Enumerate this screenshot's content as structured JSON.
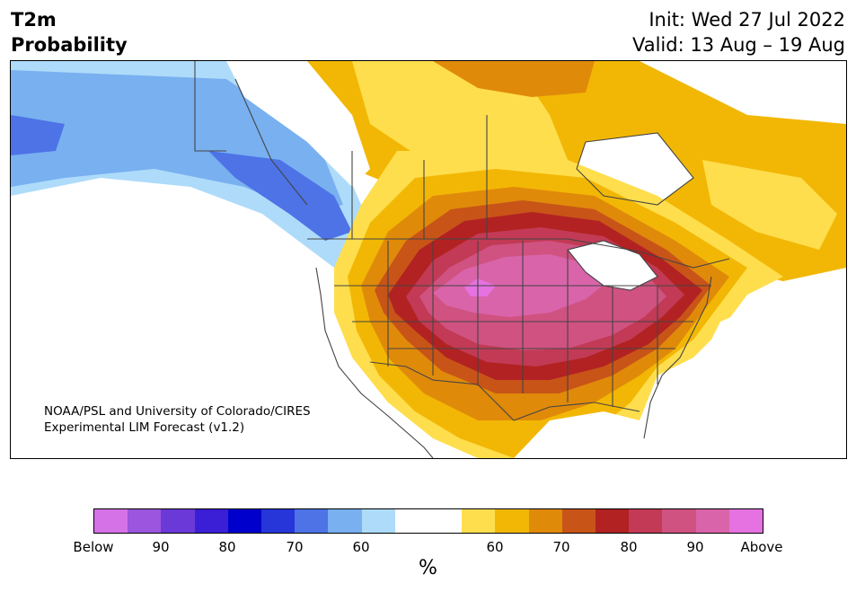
{
  "title": {
    "line1": "T2m",
    "line2": "Probability"
  },
  "init": "Init: Wed 27 Jul 2022",
  "valid": "Valid: 13 Aug – 19 Aug",
  "credit": {
    "line1": "NOAA/PSL and University of Colorado/CIRES",
    "line2": "Experimental LIM Forecast (v1.2)"
  },
  "colorbar": {
    "colors": [
      "#d672e8",
      "#9b55de",
      "#6a39d8",
      "#3a1fd6",
      "#0000cc",
      "#2636d9",
      "#4d73e6",
      "#78b0f0",
      "#aedbfa",
      "#ffffff",
      "#ffffff",
      "#ffde4d",
      "#f2b705",
      "#e08a0a",
      "#c85418",
      "#b22222",
      "#c23a55",
      "#cf5280",
      "#d964aa",
      "#e572e0"
    ],
    "labels": [
      "Below",
      "90",
      "80",
      "70",
      "60",
      "60",
      "70",
      "80",
      "90",
      "Above"
    ],
    "unit": "%"
  },
  "map_colors": {
    "land_white": "#ffffff",
    "blue_1": "#aedbfa",
    "blue_2": "#78b0f0",
    "blue_3": "#4d73e6",
    "yellow_1": "#ffde4d",
    "yellow_2": "#f2b705",
    "orange": "#e08a0a",
    "dark_orange": "#c85418",
    "red": "#b22222",
    "crimson": "#c23a55",
    "rose": "#cf5280",
    "pink": "#d964aa",
    "magenta": "#e572e0",
    "border": "#444444"
  }
}
